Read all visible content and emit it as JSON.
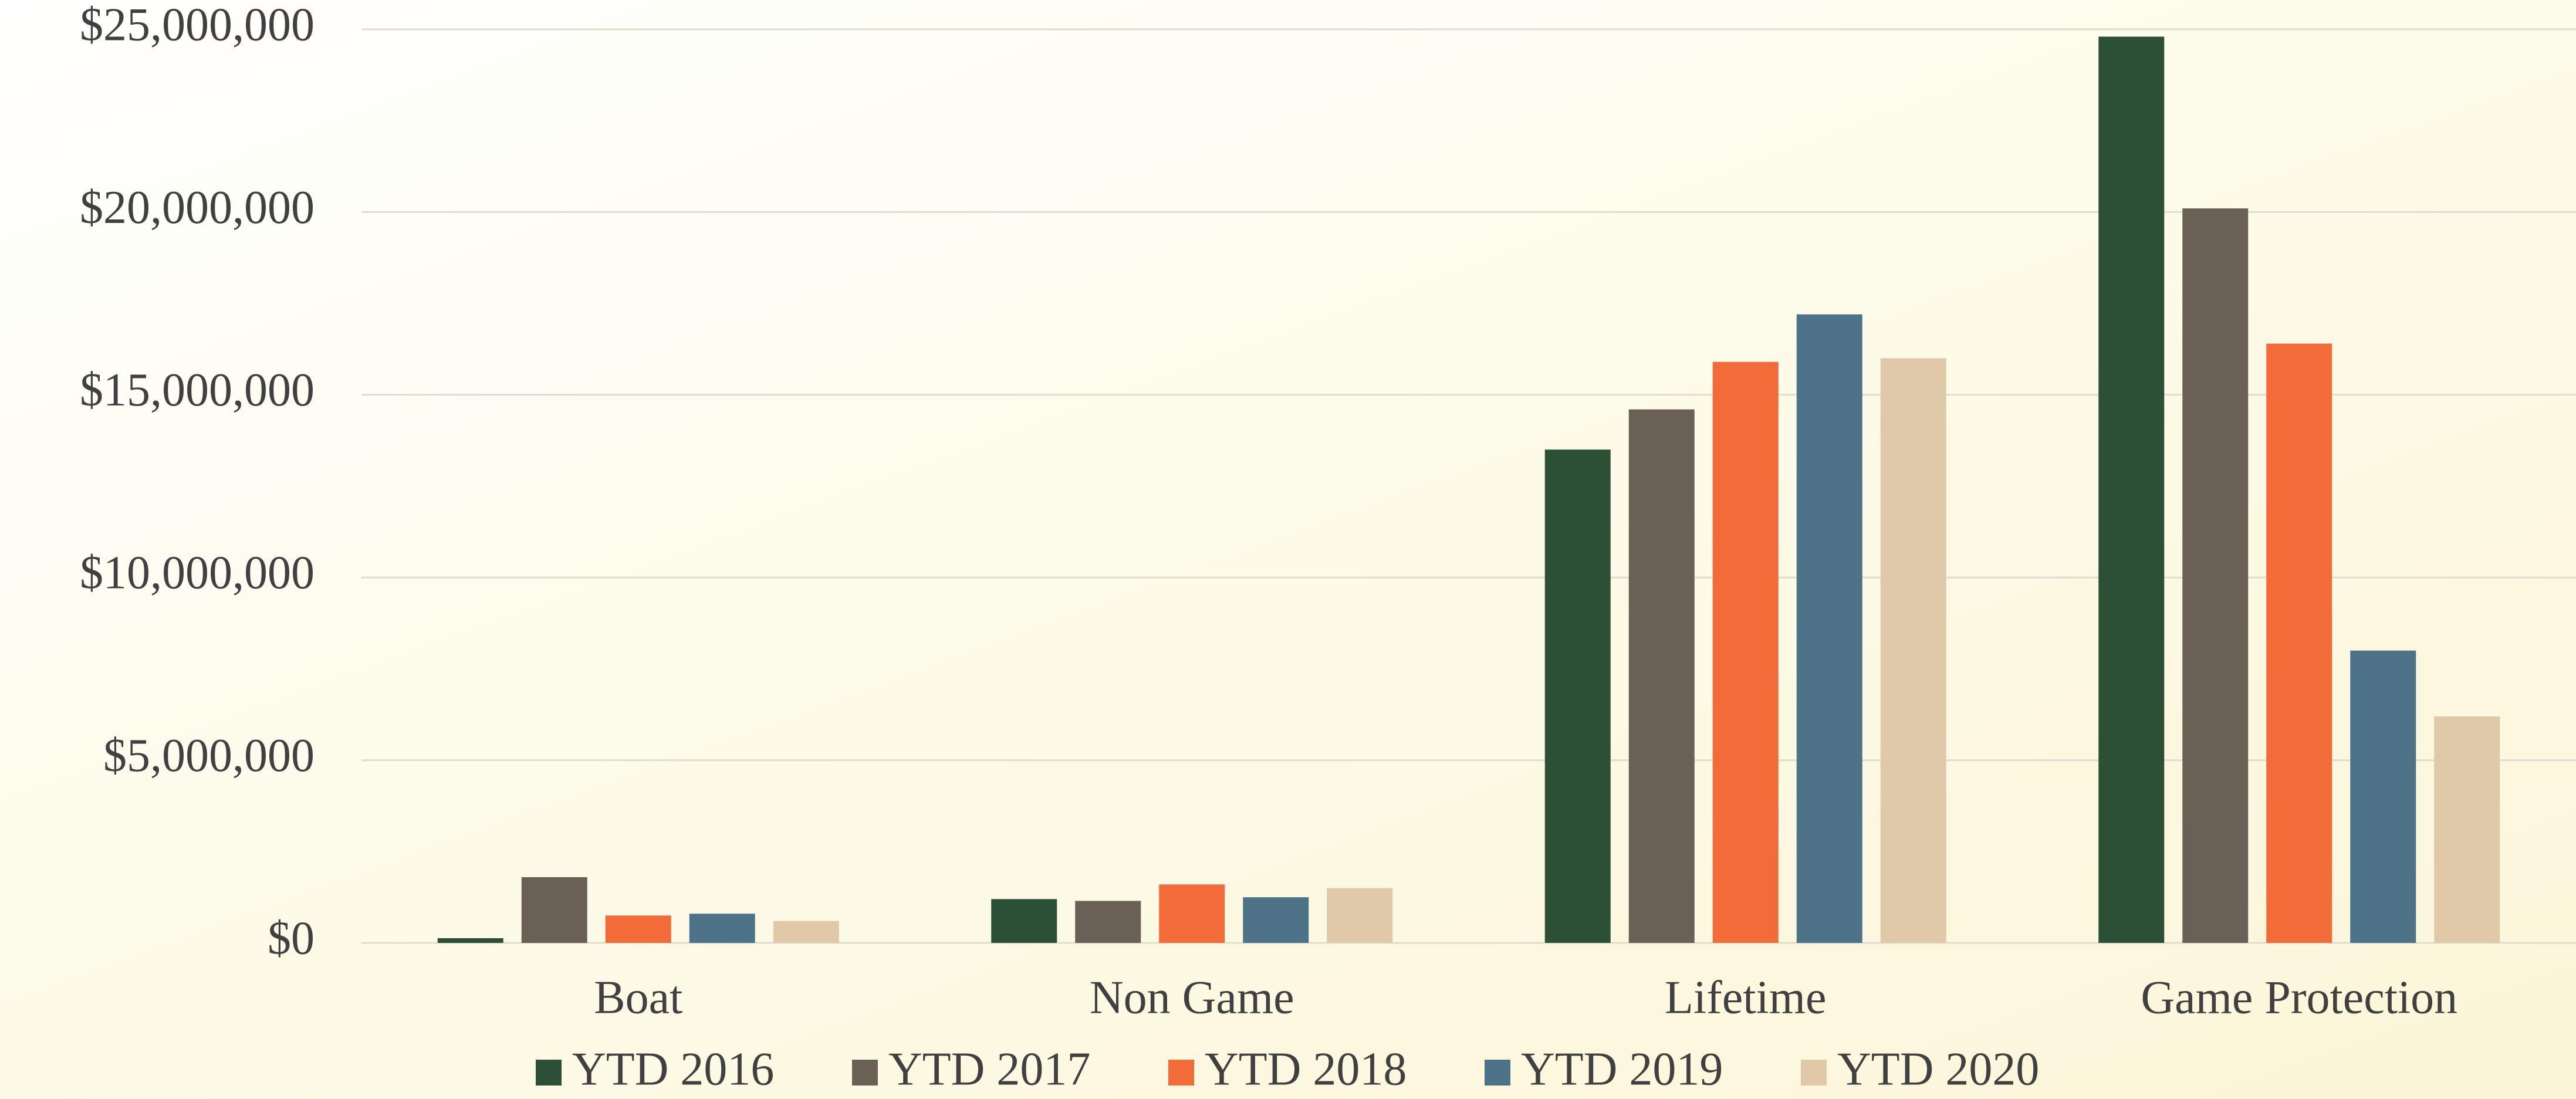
{
  "chart_data": {
    "type": "bar",
    "categories": [
      "Boat",
      "Non Game",
      "Lifetime",
      "Game Protection"
    ],
    "series": [
      {
        "name": "YTD 2016",
        "color": "#2c5036",
        "values": [
          130000,
          1200000,
          13500000,
          24800000
        ]
      },
      {
        "name": "YTD 2017",
        "color": "#6b6055",
        "values": [
          1800000,
          1150000,
          14600000,
          20100000
        ]
      },
      {
        "name": "YTD 2018",
        "color": "#f26b38",
        "values": [
          750000,
          1600000,
          15900000,
          16400000
        ]
      },
      {
        "name": "YTD 2019",
        "color": "#4e7389",
        "values": [
          800000,
          1250000,
          17200000,
          8000000
        ]
      },
      {
        "name": "YTD 2020",
        "color": "#dfc9a8",
        "values": [
          600000,
          1500000,
          16000000,
          6200000
        ]
      }
    ],
    "ylim": [
      0,
      25000000
    ],
    "yticks": [
      {
        "value": 0,
        "label": "$0"
      },
      {
        "value": 5000000,
        "label": "$5,000,000"
      },
      {
        "value": 10000000,
        "label": "$10,000,000"
      },
      {
        "value": 15000000,
        "label": "$15,000,000"
      },
      {
        "value": 20000000,
        "label": "$20,000,000"
      },
      {
        "value": 25000000,
        "label": "$25,000,000"
      }
    ],
    "grid": true,
    "legend": "bottom"
  }
}
